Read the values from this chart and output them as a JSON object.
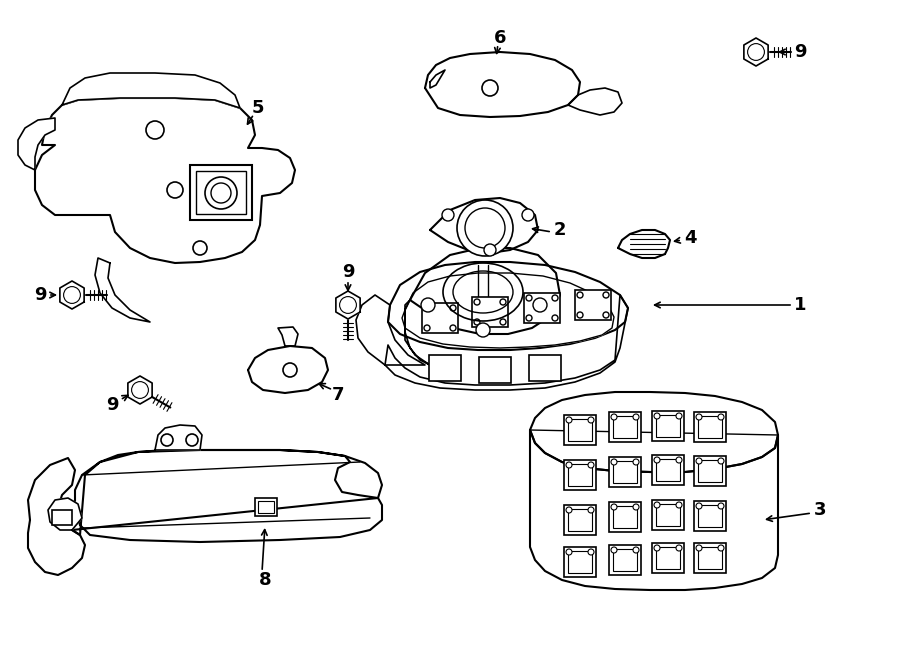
{
  "fig_width": 9.0,
  "fig_height": 6.62,
  "dpi": 100,
  "bg": "#ffffff",
  "lc": "#000000",
  "lw": 1.5,
  "label_fs": 13
}
